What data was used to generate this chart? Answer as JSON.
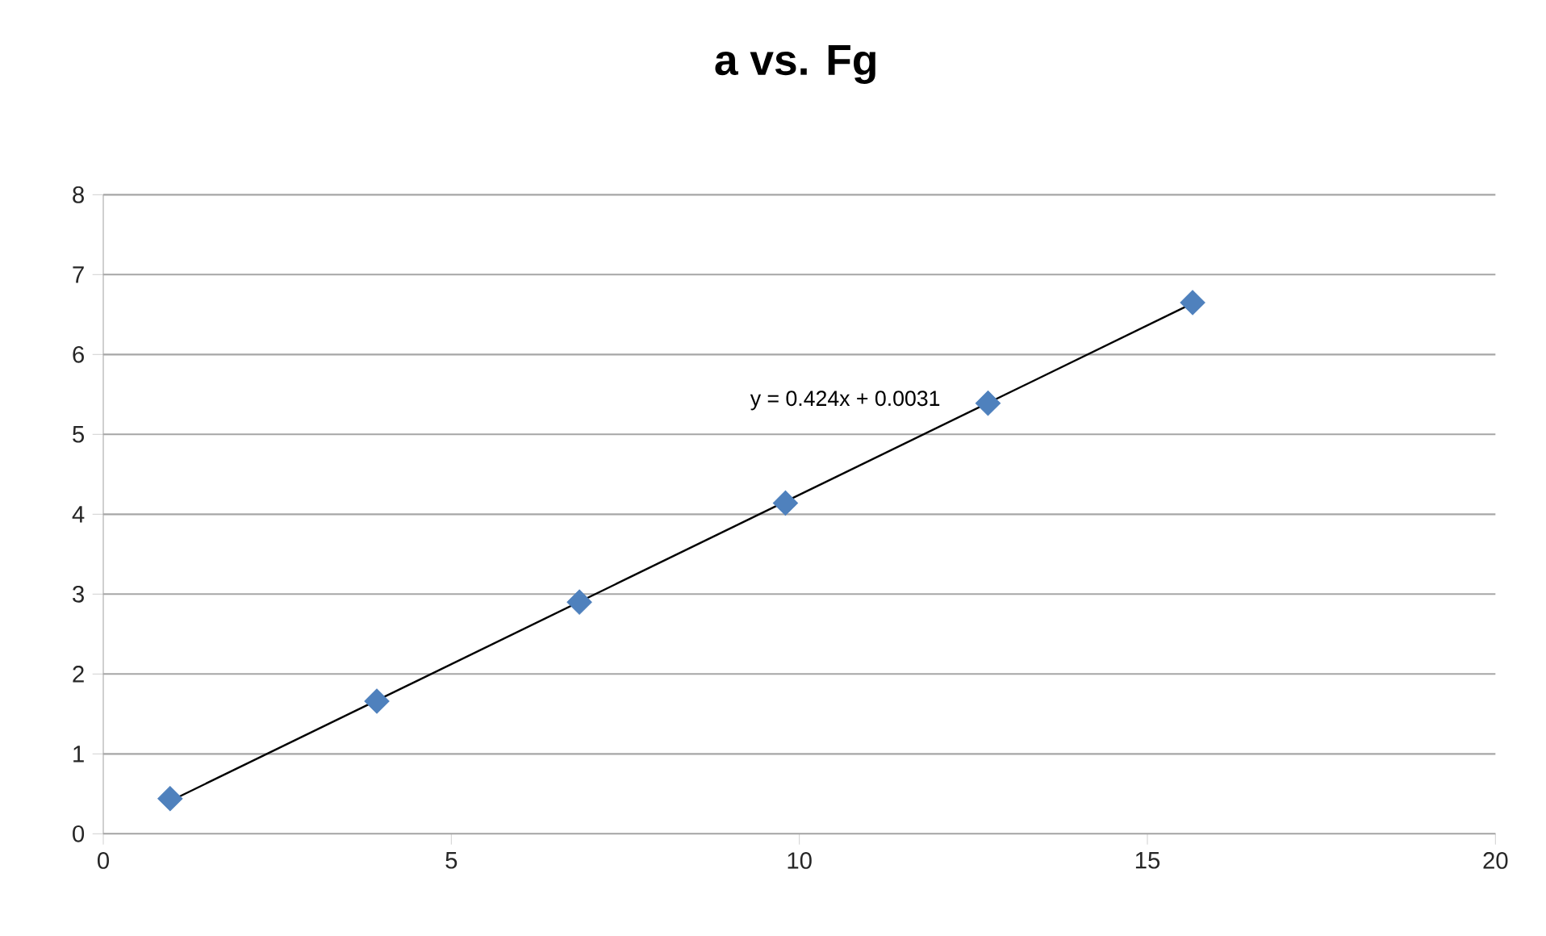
{
  "chart_data": {
    "type": "scatter",
    "title": "a vs. Fg",
    "xlim": [
      0,
      20
    ],
    "xticks": [
      0,
      5,
      10,
      15,
      20
    ],
    "ylim": [
      0,
      8
    ],
    "yticks": [
      0,
      1,
      2,
      3,
      4,
      5,
      6,
      7,
      8
    ],
    "grid": "y",
    "series": [
      {
        "type": "scatter",
        "marker": "diamond",
        "color": "#4f81bd",
        "x": [
          0.96,
          3.93,
          6.84,
          9.8,
          12.71,
          15.65
        ],
        "values": [
          0.44,
          1.66,
          2.9,
          4.14,
          5.39,
          6.65
        ]
      },
      {
        "type": "line",
        "marker": "none",
        "line_style": "solid",
        "color": "#000000",
        "x": [
          0.96,
          15.65
        ],
        "values": [
          0.41,
          6.64
        ]
      }
    ],
    "annotations": [
      "y = 0.424x + 0.0031"
    ]
  }
}
